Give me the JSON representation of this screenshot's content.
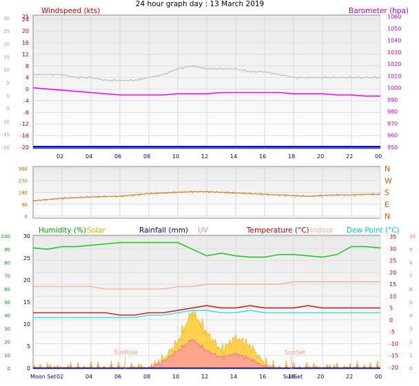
{
  "title": "24 hour graph day : 13 March 2019",
  "panels": {
    "wind": {
      "left_label": "Windspeed (kts)",
      "right_label": "Barometer (hpa)",
      "left_ticks": [
        "25",
        "24",
        "20",
        "16",
        "12",
        "8",
        "4",
        "0",
        "-4",
        "-8",
        "-12",
        "-16",
        "-20"
      ],
      "outer_ticks": [
        "30",
        "25",
        "20",
        "15",
        "10",
        "5",
        "0",
        "-5",
        "-10",
        "-15",
        "-20"
      ],
      "right_ticks": [
        "1060",
        "1050",
        "1040",
        "1030",
        "1020",
        "1010",
        "1000",
        "990",
        "980",
        "970",
        "960",
        "950"
      ]
    },
    "direction": {
      "left_ticks": [
        "360",
        "270",
        "180",
        "90",
        "0"
      ],
      "right_labels": [
        "N",
        "W",
        "S",
        "E",
        "N"
      ]
    },
    "bottom": {
      "legend": {
        "humidity": "Humidity (%)",
        "solar": "Solar",
        "rainfall": "Rainfall (mm)",
        "uv": "UV",
        "temperature": "Temperature (°C)",
        "indoor": "Indoor",
        "dewpoint": "Dew Point (°C)"
      },
      "outer_left_ticks": [
        "100",
        "90",
        "80",
        "70",
        "60",
        "50",
        "40",
        "30",
        "20",
        "10",
        "0"
      ],
      "inner_left_ticks": [
        "30",
        "25",
        "20",
        "15",
        "10",
        "5",
        "0"
      ],
      "right_inner_ticks": [
        "35",
        "30",
        "25",
        "20",
        "15",
        "10",
        "5",
        "0",
        "-5",
        "-10",
        "-15",
        "-20"
      ],
      "right_outer_ticks": [
        "10",
        "9",
        "8",
        "7",
        "6",
        "5",
        "4",
        "3",
        "2",
        "1",
        "0"
      ],
      "annotations": {
        "sunrise": "SunRise",
        "sunset": "SunSet",
        "moonset": "Moon Set",
        "sunset_axis": "SunSet"
      }
    },
    "x_ticks": [
      "02",
      "04",
      "06",
      "08",
      "10",
      "12",
      "14",
      "16",
      "18",
      "20",
      "22",
      "00"
    ]
  },
  "colors": {
    "wind": "#c0c0c0",
    "barometer": "#ff00ff",
    "direction": "#d87a20",
    "humidity": "#22c822",
    "solar": "#ffc000",
    "rainfall": "#0000a0",
    "uv": "#ff80c0",
    "temperature": "#d02020",
    "indoor": "#f4b8a0",
    "dewpoint": "#40e0e0"
  },
  "chart_data": [
    {
      "type": "line",
      "name": "wind_barometer",
      "x": [
        0,
        1,
        2,
        3,
        4,
        5,
        6,
        7,
        8,
        9,
        10,
        11,
        12,
        13,
        14,
        15,
        16,
        17,
        18,
        19,
        20,
        21,
        22,
        23,
        24
      ],
      "series": [
        {
          "name": "Windspeed (kts)",
          "axis": "left",
          "values": [
            5,
            5,
            5,
            4,
            4,
            3,
            3,
            3,
            4,
            5,
            7,
            8,
            7,
            7,
            7,
            6,
            6,
            5,
            4,
            4,
            4,
            4,
            4,
            4,
            4
          ]
        },
        {
          "name": "Barometer (hpa)",
          "axis": "right",
          "values": [
            1000,
            999,
            998,
            997,
            996,
            995,
            994,
            994,
            994,
            994,
            995,
            995,
            995,
            996,
            996,
            996,
            996,
            996,
            995,
            995,
            995,
            994,
            994,
            993,
            993
          ]
        }
      ],
      "ylim_left": [
        -20,
        25
      ],
      "ylim_right": [
        950,
        1060
      ]
    },
    {
      "type": "line",
      "name": "wind_direction",
      "x": [
        0,
        1,
        2,
        3,
        4,
        5,
        6,
        7,
        8,
        9,
        10,
        11,
        12,
        13,
        14,
        15,
        16,
        17,
        18,
        19,
        20,
        21,
        22,
        23,
        24
      ],
      "series": [
        {
          "name": "Direction",
          "values": [
            115,
            125,
            135,
            140,
            145,
            148,
            150,
            160,
            170,
            175,
            180,
            185,
            185,
            180,
            175,
            170,
            165,
            160,
            155,
            150,
            155,
            160,
            160,
            165,
            165
          ]
        }
      ],
      "ylim": [
        0,
        360
      ]
    },
    {
      "type": "line",
      "name": "bottom_panel",
      "x": [
        0,
        1,
        2,
        3,
        4,
        5,
        6,
        7,
        8,
        9,
        10,
        11,
        12,
        13,
        14,
        15,
        16,
        17,
        18,
        19,
        20,
        21,
        22,
        23,
        24
      ],
      "series": [
        {
          "name": "Humidity (%)",
          "axis": "outer_left",
          "values": [
            91,
            90,
            92,
            92,
            93,
            94,
            95,
            95,
            95,
            95,
            95,
            90,
            85,
            87,
            85,
            84,
            84,
            86,
            86,
            85,
            84,
            86,
            92,
            92,
            91
          ]
        },
        {
          "name": "Indoor",
          "axis": "right_inner",
          "values": [
            14,
            14,
            14,
            14,
            14,
            13,
            13,
            13,
            13,
            13,
            14,
            14,
            15,
            15,
            15,
            15,
            15,
            15,
            16,
            16,
            16,
            16,
            16,
            16,
            16
          ]
        },
        {
          "name": "Temperature (°C)",
          "axis": "right_inner",
          "values": [
            3,
            3,
            3,
            3,
            3,
            3,
            2,
            2,
            3,
            3,
            4,
            5,
            6,
            5,
            5,
            6,
            5,
            5,
            5,
            6,
            5,
            5,
            5,
            5,
            5
          ]
        },
        {
          "name": "Dew Point (°C)",
          "axis": "right_inner",
          "values": [
            1,
            1,
            1,
            1,
            1,
            1,
            1,
            1,
            2,
            2,
            3,
            4,
            4,
            3,
            3,
            4,
            3,
            3,
            3,
            3,
            3,
            3,
            3,
            3,
            3
          ]
        },
        {
          "name": "Solar",
          "axis": "inner_left",
          "values": [
            0,
            0,
            0,
            0,
            0,
            0,
            0,
            0,
            0,
            2,
            6,
            13,
            8,
            4,
            7,
            5,
            1,
            0,
            0,
            0,
            0,
            0,
            0,
            0,
            0
          ]
        },
        {
          "name": "UV",
          "axis": "right_outer",
          "values": [
            0,
            0,
            0,
            0,
            0,
            0,
            0,
            0,
            0,
            0.5,
            1.3,
            2.2,
            1.3,
            0.8,
            1.1,
            0.7,
            0.1,
            0,
            0,
            0,
            0,
            0,
            0,
            0,
            0
          ]
        },
        {
          "name": "Rainfall (mm)",
          "axis": "inner_left",
          "values": [
            0,
            0,
            0,
            0,
            0,
            0,
            0,
            0,
            0,
            0,
            0,
            0,
            0,
            0,
            0,
            0,
            0,
            0,
            0,
            0,
            0,
            0,
            0,
            0,
            0
          ]
        }
      ]
    }
  ]
}
